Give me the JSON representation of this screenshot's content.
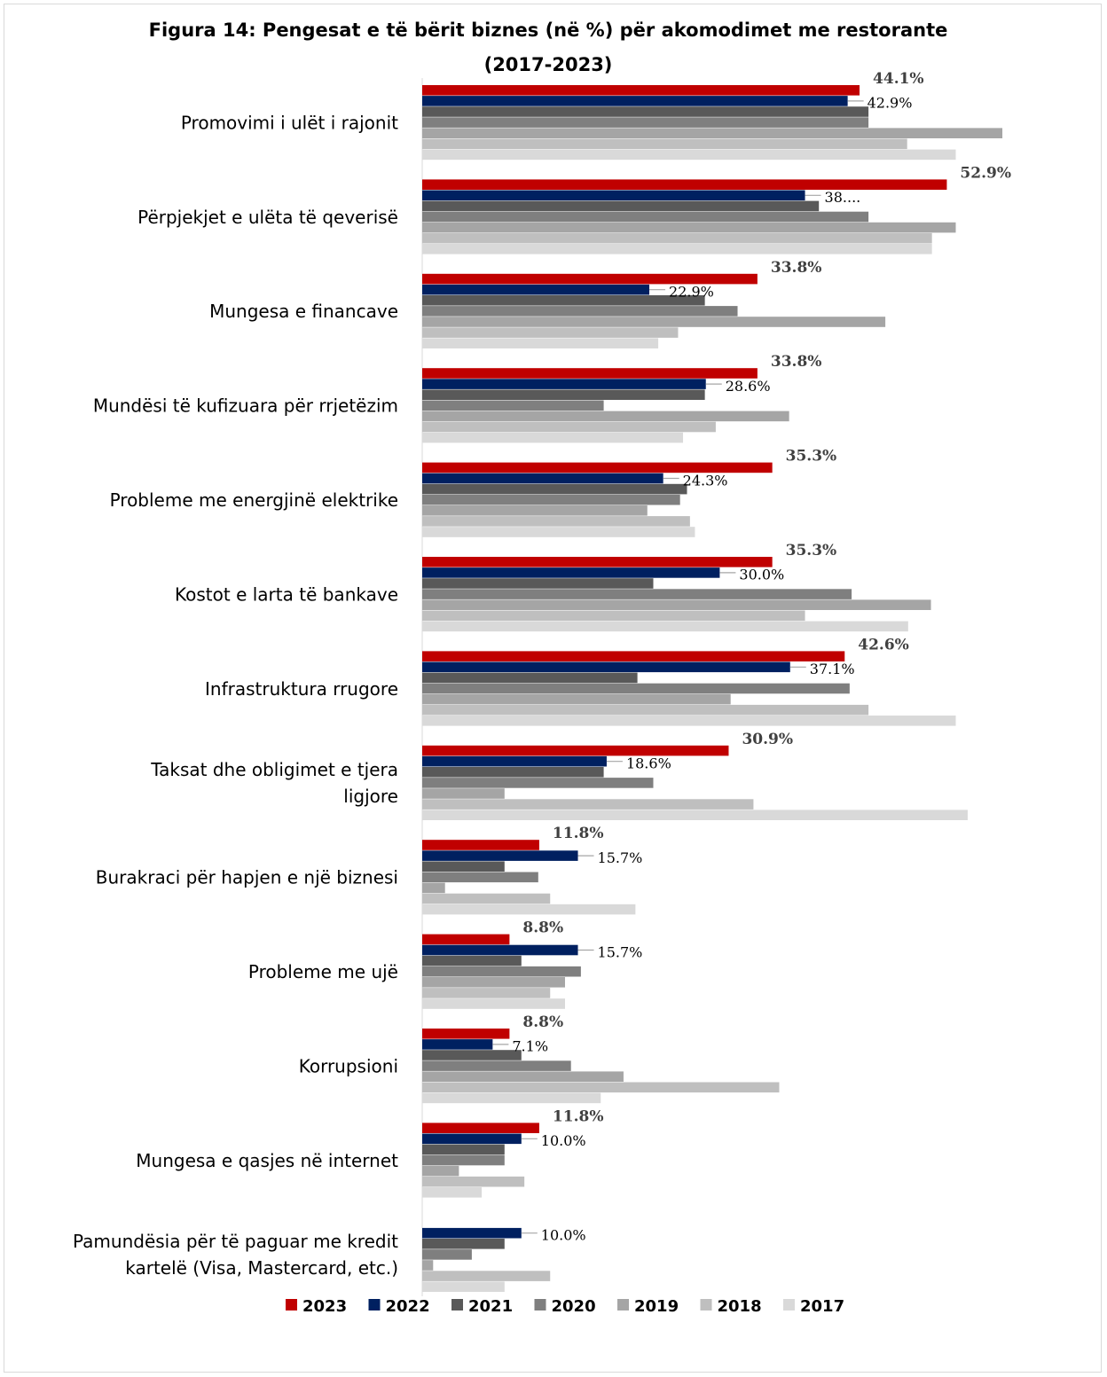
{
  "title_lines": [
    "Figura 14: Pengesat e të bërit biznes (në %) për akomodimet me restorante",
    "(2017-2023)"
  ],
  "chart_data": {
    "type": "bar",
    "orientation": "horizontal",
    "title": "Figura 14: Pengesat e të bërit biznes (në %) për akomodimet me restorante (2017-2023)",
    "xlabel": "",
    "ylabel": "",
    "xlim": [
      0,
      70
    ],
    "grid": false,
    "legend_position": "bottom",
    "categories": [
      "Promovimi i ulët i rajonit",
      "Përpjekjet e ulëta të qeverisë",
      "Mungesa e financave",
      "Mundësi të kufizuara për rrjetëzim",
      "Probleme me energjinë elektrike",
      "Kostot e larta të bankave",
      "Infrastruktura rrugore",
      "Taksat dhe obligimet e tjera ligjore",
      "Burakraci për hapjen e një biznesi",
      "Probleme me ujë",
      "Korrupsioni",
      "Mungesa e qasjes në internet",
      "Pamundësia për të paguar me kredit kartelë (Visa, Mastercard, etc.)"
    ],
    "series": [
      {
        "name": "2023",
        "color": "#C00000",
        "values": [
          44.1,
          52.9,
          33.8,
          33.8,
          35.3,
          35.3,
          42.6,
          30.9,
          11.8,
          8.8,
          8.8,
          11.8,
          null
        ],
        "labels": [
          "44.1%",
          "52.9%",
          "33.8%",
          "33.8%",
          "35.3%",
          "35.3%",
          "42.6%",
          "30.9%",
          "11.8%",
          "8.8%",
          "8.8%",
          "11.8%",
          ""
        ]
      },
      {
        "name": "2022",
        "color": "#002060",
        "values": [
          42.9,
          38.6,
          22.9,
          28.6,
          24.3,
          30.0,
          37.1,
          18.6,
          15.7,
          15.7,
          7.1,
          10.0,
          10.0
        ],
        "labels": [
          "42.9%",
          "38....",
          "22.9%",
          "28.6%",
          "24.3%",
          "30.0%",
          "37.1%",
          "18.6%",
          "15.7%",
          "15.7%",
          "7.1%",
          "10.0%",
          "10.0%"
        ]
      },
      {
        "name": "2021",
        "color": "#595959",
        "values": [
          45.0,
          40.0,
          28.5,
          28.5,
          26.7,
          23.3,
          21.7,
          18.3,
          8.3,
          10.0,
          10.0,
          8.3,
          8.3
        ]
      },
      {
        "name": "2020",
        "color": "#7F7F7F",
        "values": [
          45.0,
          45.0,
          31.8,
          18.3,
          26.0,
          43.3,
          43.1,
          23.3,
          11.7,
          16.0,
          15.0,
          8.3,
          5.0
        ]
      },
      {
        "name": "2019",
        "color": "#A5A5A5",
        "values": [
          58.5,
          53.8,
          46.7,
          37.0,
          22.7,
          51.3,
          31.1,
          8.3,
          2.3,
          14.4,
          20.3,
          3.7,
          1.1
        ]
      },
      {
        "name": "2018",
        "color": "#BFBFBF",
        "values": [
          48.9,
          51.4,
          25.8,
          29.6,
          27.0,
          38.6,
          45.0,
          33.4,
          12.9,
          12.9,
          36.0,
          10.3,
          12.9
        ]
      },
      {
        "name": "2017",
        "color": "#D9D9D9",
        "values": [
          53.8,
          51.4,
          23.8,
          26.3,
          27.5,
          49.0,
          53.8,
          55.0,
          21.5,
          14.4,
          18.0,
          6.0,
          8.3
        ]
      }
    ]
  }
}
